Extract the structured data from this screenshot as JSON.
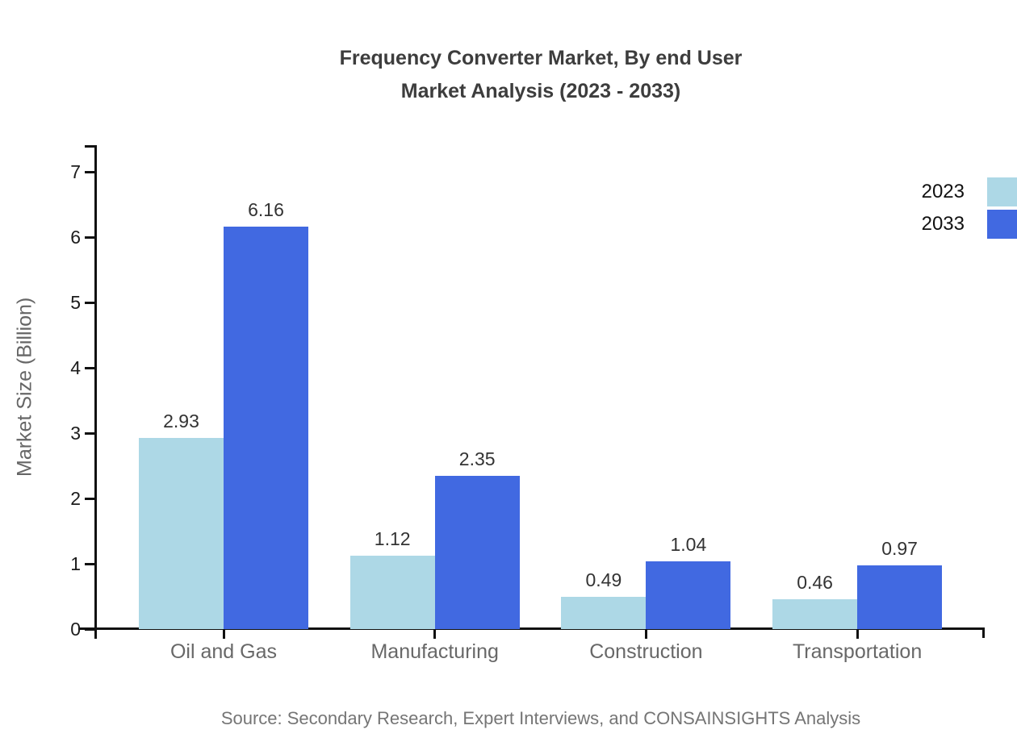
{
  "title": {
    "line1": "Frequency Converter Market, By end User",
    "line2": "Market Analysis (2023 - 2033)"
  },
  "source": "Source: Secondary Research, Expert Interviews, and CONSAINSIGHTS Analysis",
  "colors": {
    "series_2023": "#add8e6",
    "series_2033": "#4169e1",
    "axis": "#111111",
    "category_label": "#686868",
    "value_label": "#333333",
    "title_text": "#3d3d3d"
  },
  "legend": {
    "position": "top-right-edge",
    "items": [
      {
        "label": "2023",
        "color": "#add8e6"
      },
      {
        "label": "2033",
        "color": "#4169e1"
      }
    ]
  },
  "chart_data": {
    "type": "bar",
    "title": "Frequency Converter Market, By end User Market Analysis (2023 - 2033)",
    "xlabel": "",
    "ylabel": "Market Size (Billion)",
    "categories": [
      "Oil and Gas",
      "Manufacturing",
      "Construction",
      "Transportation"
    ],
    "series": [
      {
        "name": "2023",
        "color": "#add8e6",
        "values": [
          2.93,
          1.12,
          0.49,
          0.46
        ]
      },
      {
        "name": "2033",
        "color": "#4169e1",
        "values": [
          6.16,
          2.35,
          1.04,
          0.97
        ]
      }
    ],
    "ylim": [
      0,
      7
    ],
    "yticks": [
      0,
      1,
      2,
      3,
      4,
      5,
      6,
      7
    ],
    "grid": false,
    "value_labels_decimals": 2
  }
}
